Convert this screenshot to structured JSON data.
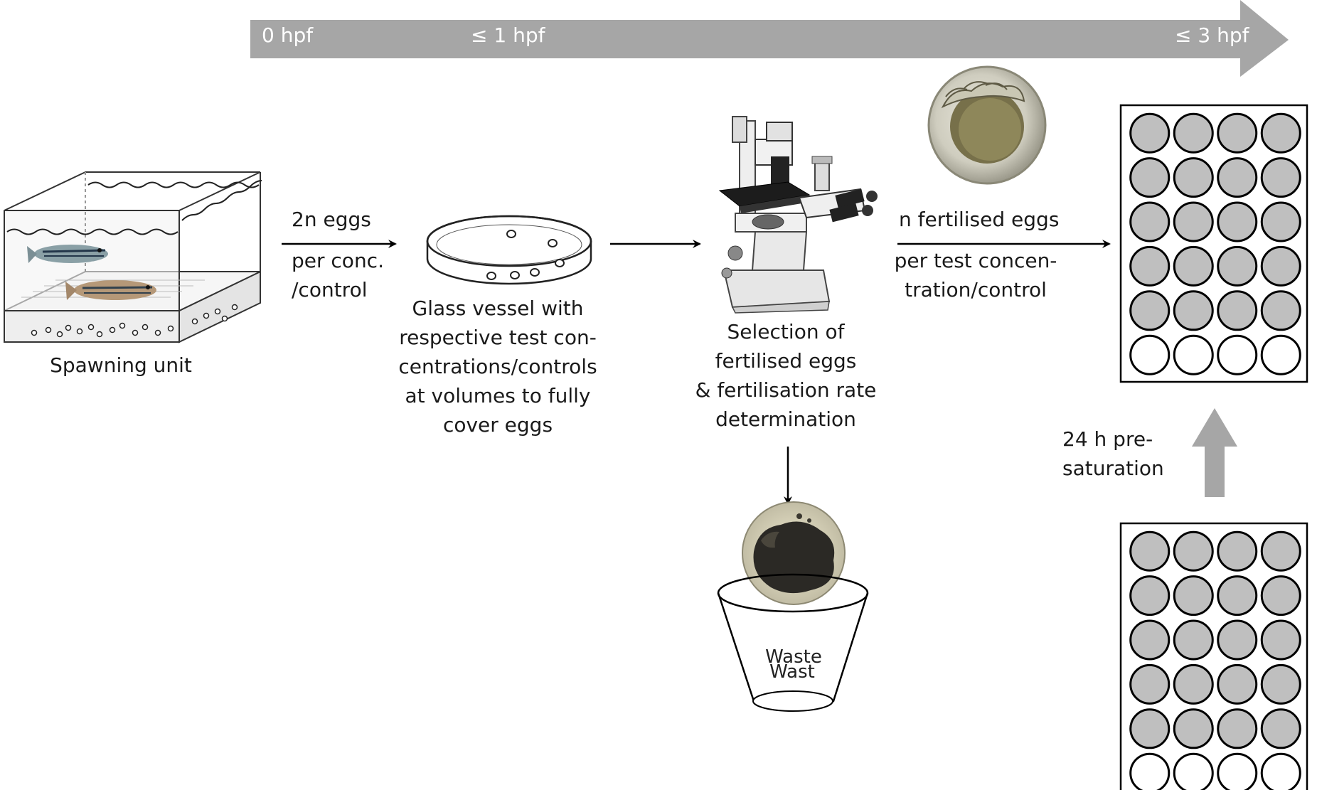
{
  "timeline": {
    "labels": [
      "0 hpf",
      "≤ 1 hpf",
      "≤ 3 hpf"
    ],
    "color": "#a6a6a6"
  },
  "labels": {
    "spawning_unit": "Spawning unit",
    "arrow1_top": "2n eggs",
    "arrow1_bottom": [
      "per conc.",
      "/control"
    ],
    "glass_vessel": [
      "Glass vessel with",
      "respective test con-",
      "centrations/controls",
      "at volumes to fully",
      "cover eggs"
    ],
    "selection": [
      "Selection of",
      "fertilised eggs",
      "& fertilisation rate",
      "determination"
    ],
    "arrow3_top": "n fertilised eggs",
    "arrow3_bottom": [
      "per test concen-",
      "tration/control"
    ],
    "presaturation": [
      "24 h pre-",
      "saturation"
    ],
    "waste_lines": [
      "Waste",
      "Wast"
    ]
  },
  "plates": {
    "rows": 6,
    "cols": 4,
    "filled_rows": 5,
    "fill_color": "#bfbfbf",
    "empty_color": "#ffffff"
  },
  "colors": {
    "arrow": "#000000",
    "grey_arrow": "#a6a6a6"
  }
}
